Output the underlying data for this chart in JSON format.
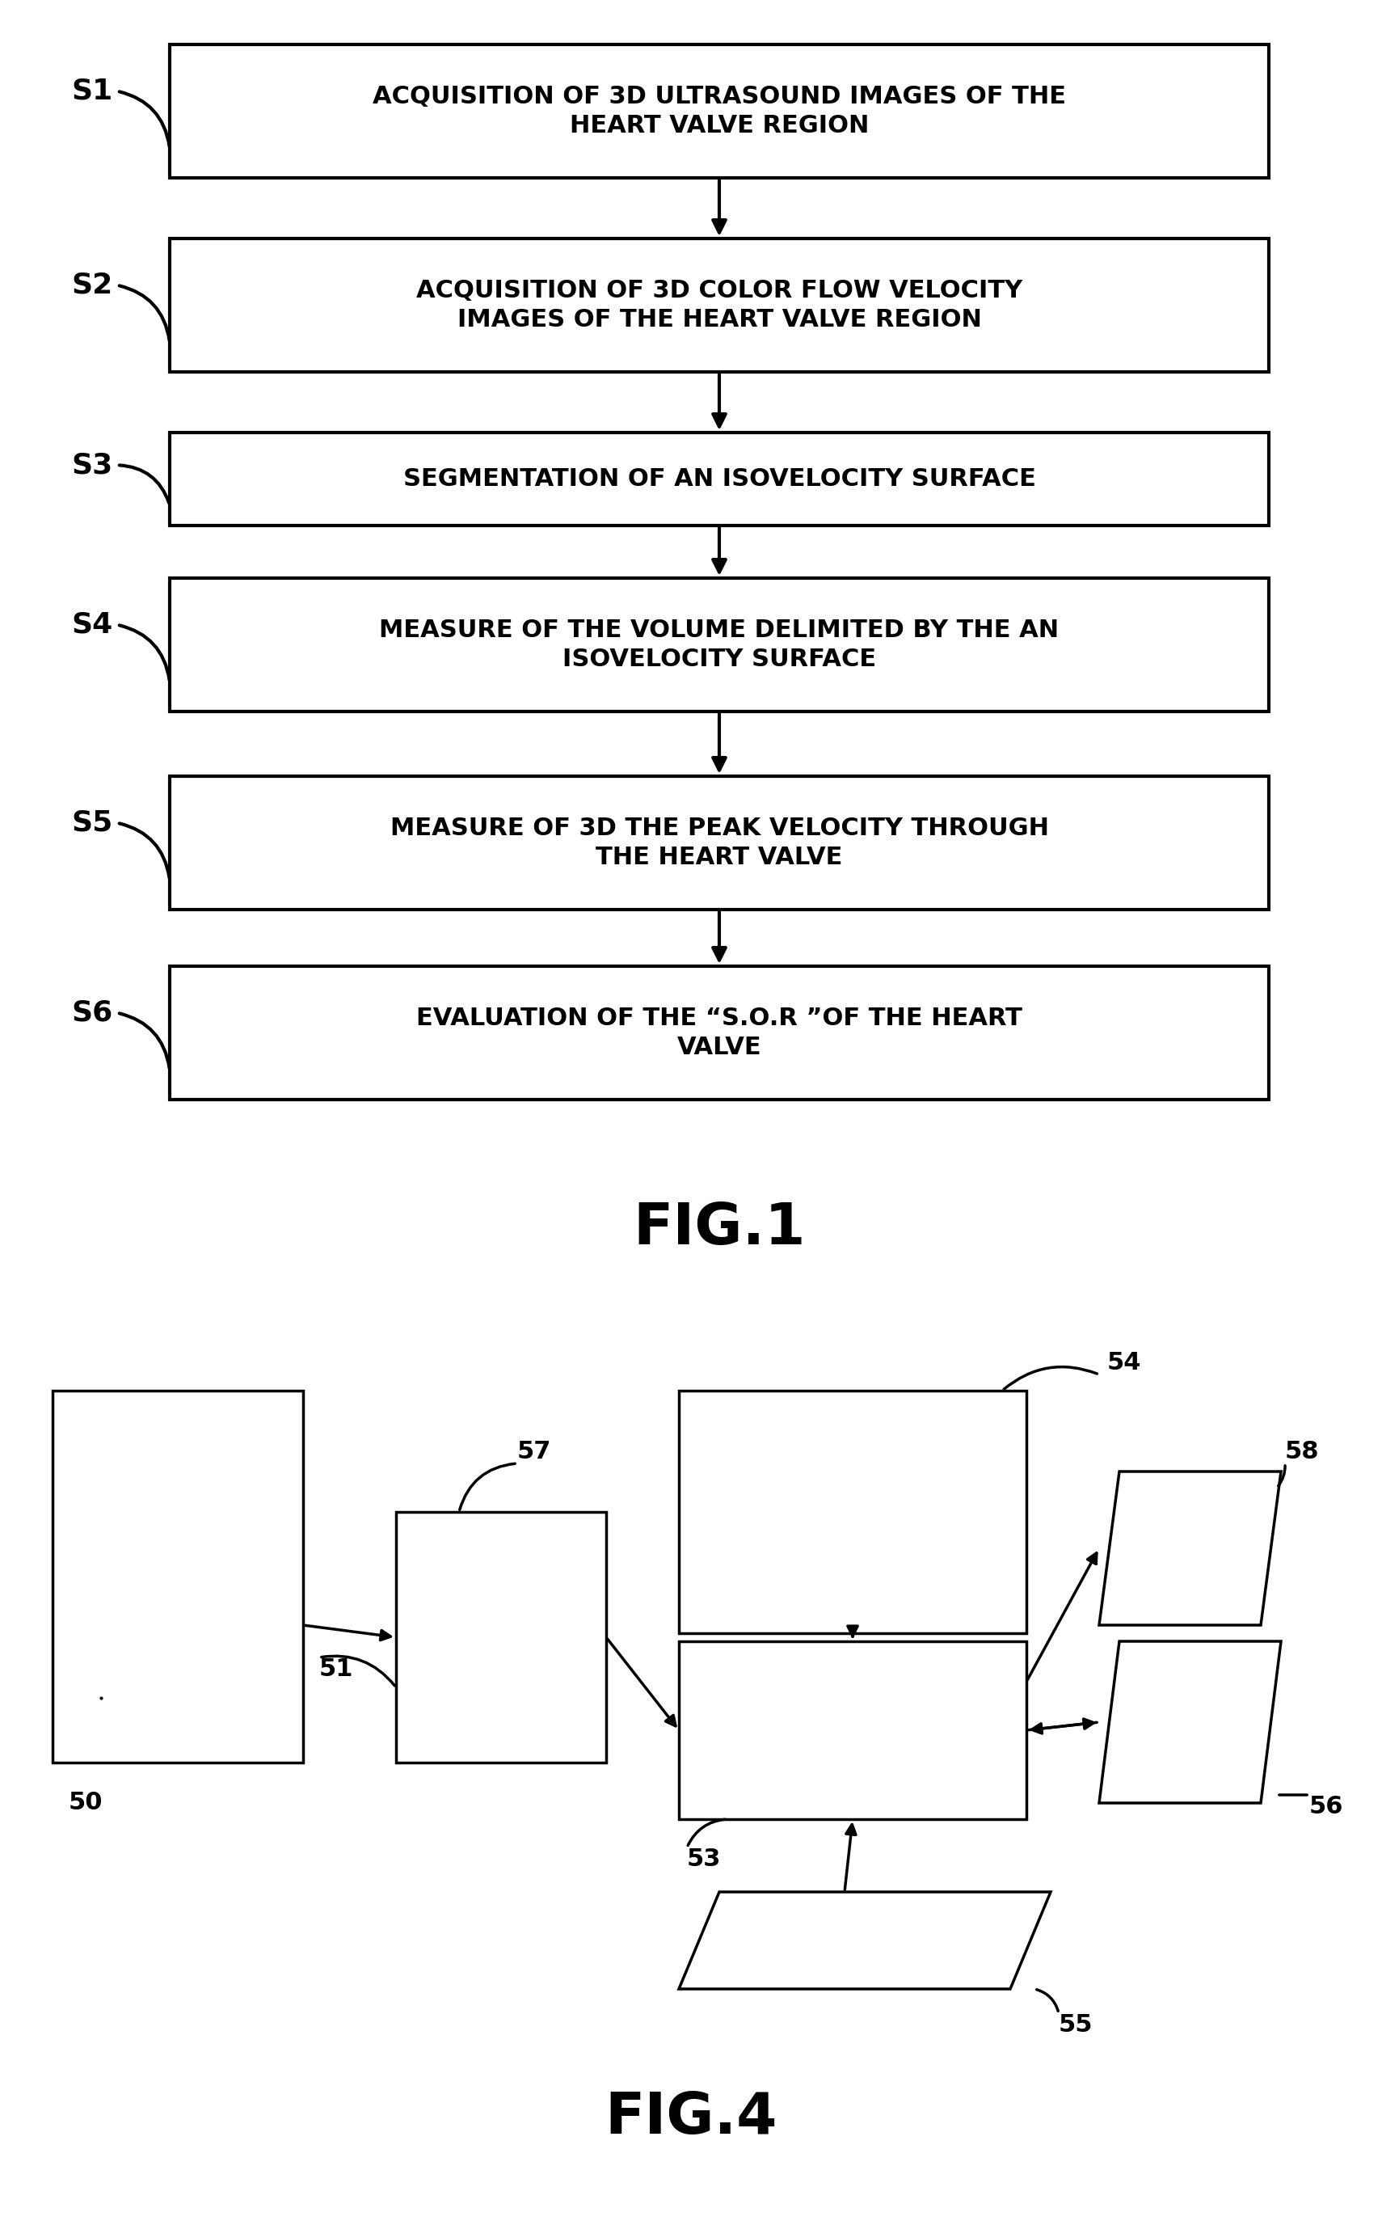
{
  "fig1_title": "FIG.1",
  "fig4_title": "FIG.4",
  "steps": [
    {
      "label": "S1",
      "text": "ACQUISITION OF 3D ULTRASOUND IMAGES OF THE\nHEART VALVE REGION"
    },
    {
      "label": "S2",
      "text": "ACQUISITION OF 3D COLOR FLOW VELOCITY\nIMAGES OF THE HEART VALVE REGION"
    },
    {
      "label": "S3",
      "text": "SEGMENTATION OF AN ISOVELOCITY SURFACE"
    },
    {
      "label": "S4",
      "text": "MEASURE OF THE VOLUME DELIMITED BY THE AN\nISOVELOCITY SURFACE"
    },
    {
      "label": "S5",
      "text": "MEASURE OF 3D THE PEAK VELOCITY THROUGH\nTHE HEART VALVE"
    },
    {
      "label": "S6",
      "text": "EVALUATION OF THE “S.O.R ”OF THE HEART\nVALVE"
    }
  ],
  "bg_color": "#ffffff",
  "box_edge_color": "#000000",
  "text_color": "#000000",
  "arrow_color": "#000000"
}
